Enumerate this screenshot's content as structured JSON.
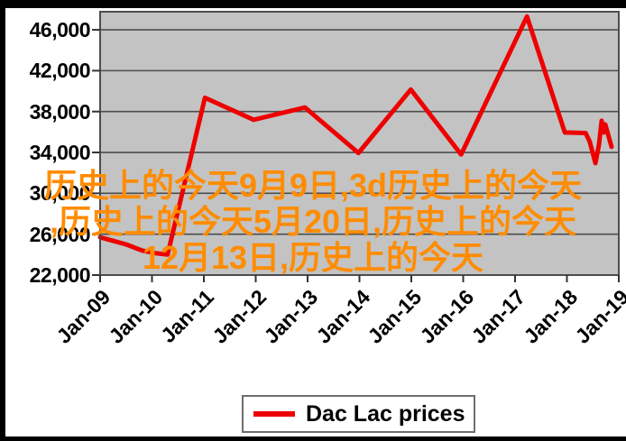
{
  "watermark": {
    "color": "#ff8c00",
    "lines": [
      "历史上的今天9月9日,3d历史上的今天",
      ",历史上的今天5月20日,历史上的今天",
      "12月13日,历史上的今天"
    ]
  },
  "legend": {
    "label": "Dac Lac prices"
  },
  "chart_data": {
    "type": "line",
    "title": "",
    "legend_entries": [
      "Dac Lac prices"
    ],
    "legend_position": "bottom",
    "grid": true,
    "plot_bg_color": "#c3c3c3",
    "gridline_color": "#4d4d4d",
    "line_color": "#ee0000",
    "x_tick_labels": [
      "Jan-09",
      "Jan-10",
      "Jan-11",
      "Jan-12",
      "Jan-13",
      "Jan-14",
      "Jan-15",
      "Jan-16",
      "Jan-17",
      "Jan-18",
      "Jan-19"
    ],
    "y_tick_labels": [
      "22,000",
      "26,000",
      "30,000",
      "34,000",
      "38,000",
      "42,000",
      "46,000"
    ],
    "y_ticks": [
      22000,
      26000,
      30000,
      34000,
      38000,
      42000,
      46000
    ],
    "y_axis_min": 22000,
    "y_axis_max": 47770,
    "approx_values_at_x_ticks": [
      25700,
      24250,
      39350,
      37200,
      38400,
      33950,
      40150,
      33800,
      44800,
      35950,
      34550
    ],
    "series": [
      {
        "name": "Dac Lac prices",
        "points": [
          [
            0.0,
            25700
          ],
          [
            0.05,
            25000
          ],
          [
            0.081,
            24400
          ],
          [
            0.105,
            24150
          ],
          [
            0.13,
            24000
          ],
          [
            0.202,
            39350
          ],
          [
            0.296,
            37200
          ],
          [
            0.395,
            38400
          ],
          [
            0.498,
            33950
          ],
          [
            0.599,
            40150
          ],
          [
            0.696,
            33800
          ],
          [
            0.823,
            47300
          ],
          [
            0.896,
            35950
          ],
          [
            0.936,
            35900
          ],
          [
            0.944,
            35050
          ],
          [
            0.955,
            32950
          ],
          [
            0.962,
            34800
          ],
          [
            0.967,
            37100
          ],
          [
            0.971,
            35950
          ],
          [
            0.974,
            36750
          ],
          [
            0.986,
            34550
          ]
        ]
      }
    ]
  }
}
